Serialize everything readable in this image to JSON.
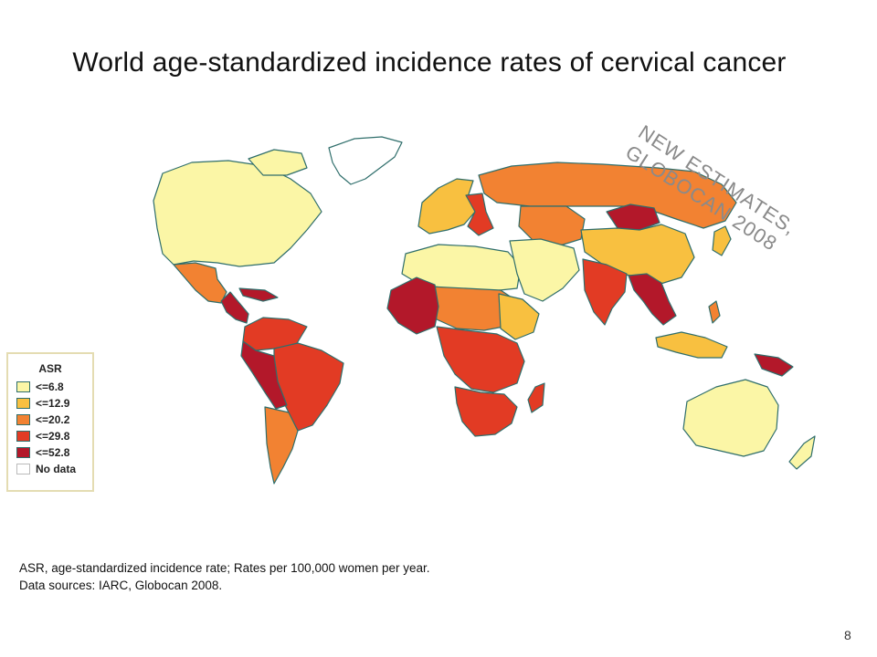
{
  "slide": {
    "title": "World age-standardized incidence rates of cervical cancer",
    "stamp_lines": [
      "NEW ESTIMATES,",
      "GLOBOCAN 2008"
    ],
    "footnote_lines": [
      "ASR, age-standardized incidence rate; Rates per 100,000 women per year.",
      "Data sources: IARC, Globocan 2008."
    ],
    "page_number": "8"
  },
  "legend": {
    "title": "ASR",
    "items": [
      {
        "label": "<=6.8",
        "color": "#fbf6a6"
      },
      {
        "label": "<=12.9",
        "color": "#f8c040"
      },
      {
        "label": "<=20.2",
        "color": "#f28232"
      },
      {
        "label": "<=29.8",
        "color": "#e23b24"
      },
      {
        "label": "<=52.8",
        "color": "#b3182a"
      },
      {
        "label": "No data",
        "color": "#ffffff"
      }
    ]
  },
  "regions": [
    {
      "name": "North America",
      "class": "<=6.8"
    },
    {
      "name": "Greenland",
      "class": "No data"
    },
    {
      "name": "Mexico",
      "class": "<=20.2"
    },
    {
      "name": "Central America",
      "class": "<=52.8"
    },
    {
      "name": "Caribbean",
      "class": "<=52.8"
    },
    {
      "name": "Northern South America",
      "class": "<=29.8"
    },
    {
      "name": "Brazil",
      "class": "<=29.8"
    },
    {
      "name": "Peru and Bolivia",
      "class": "<=52.8"
    },
    {
      "name": "Southern Cone",
      "class": "<=20.2"
    },
    {
      "name": "Western Europe",
      "class": "<=12.9"
    },
    {
      "name": "Eastern Europe",
      "class": "<=29.8"
    },
    {
      "name": "Russia",
      "class": "<=20.2"
    },
    {
      "name": "Central Asia",
      "class": "<=20.2"
    },
    {
      "name": "Mongolia",
      "class": "<=52.8"
    },
    {
      "name": "China",
      "class": "<=12.9"
    },
    {
      "name": "North Africa",
      "class": "<=6.8"
    },
    {
      "name": "Middle East",
      "class": "<=6.8"
    },
    {
      "name": "Sahel",
      "class": "<=20.2"
    },
    {
      "name": "West Africa",
      "class": "<=52.8"
    },
    {
      "name": "Horn of Africa",
      "class": "<=12.9"
    },
    {
      "name": "Central and East Africa",
      "class": "<=29.8"
    },
    {
      "name": "Southern Africa",
      "class": "<=29.8"
    },
    {
      "name": "Madagascar",
      "class": "<=29.8"
    },
    {
      "name": "India",
      "class": "<=29.8"
    },
    {
      "name": "Southeast Asia mainland",
      "class": "<=52.8"
    },
    {
      "name": "Indonesia",
      "class": "<=12.9"
    },
    {
      "name": "Papua New Guinea",
      "class": "<=52.8"
    },
    {
      "name": "Australia",
      "class": "<=6.8"
    },
    {
      "name": "New Zealand",
      "class": "<=6.8"
    },
    {
      "name": "Japan",
      "class": "<=12.9"
    },
    {
      "name": "Philippines",
      "class": "<=20.2"
    }
  ]
}
